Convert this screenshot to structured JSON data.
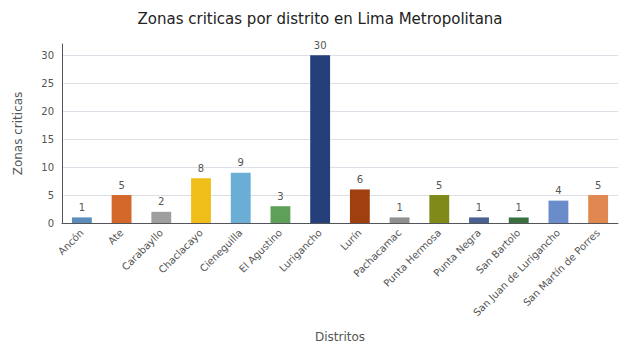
{
  "chart_data": {
    "type": "bar",
    "title": "Zonas criticas por distrito en Lima Metropolitana",
    "xlabel": "Distritos",
    "ylabel": "Zonas criticas",
    "categories": [
      "Ancón",
      "Ate",
      "Carabayllo",
      "Chaclacayo",
      "Cieneguilla",
      "El Agustino",
      "Lurigancho",
      "Lurín",
      "Pachacamac",
      "Punta Hermosa",
      "Punta Negra",
      "San Bartolo",
      "San Juan de Lurigancho",
      "San Martín de Porres"
    ],
    "values": [
      1,
      5,
      2,
      8,
      9,
      3,
      30,
      6,
      1,
      5,
      1,
      1,
      4,
      5
    ],
    "colors": [
      "#5b8db8",
      "#d4672a",
      "#9e9e9e",
      "#f0be18",
      "#6aaed6",
      "#5ea05a",
      "#243f7a",
      "#a04010",
      "#909090",
      "#808a18",
      "#4a6090",
      "#3a7040",
      "#6b8cca",
      "#e08850"
    ],
    "ylim": [
      0,
      32
    ],
    "yticks": [
      0,
      5,
      10,
      15,
      20,
      25,
      30
    ],
    "grid": true,
    "data_labels": true
  }
}
